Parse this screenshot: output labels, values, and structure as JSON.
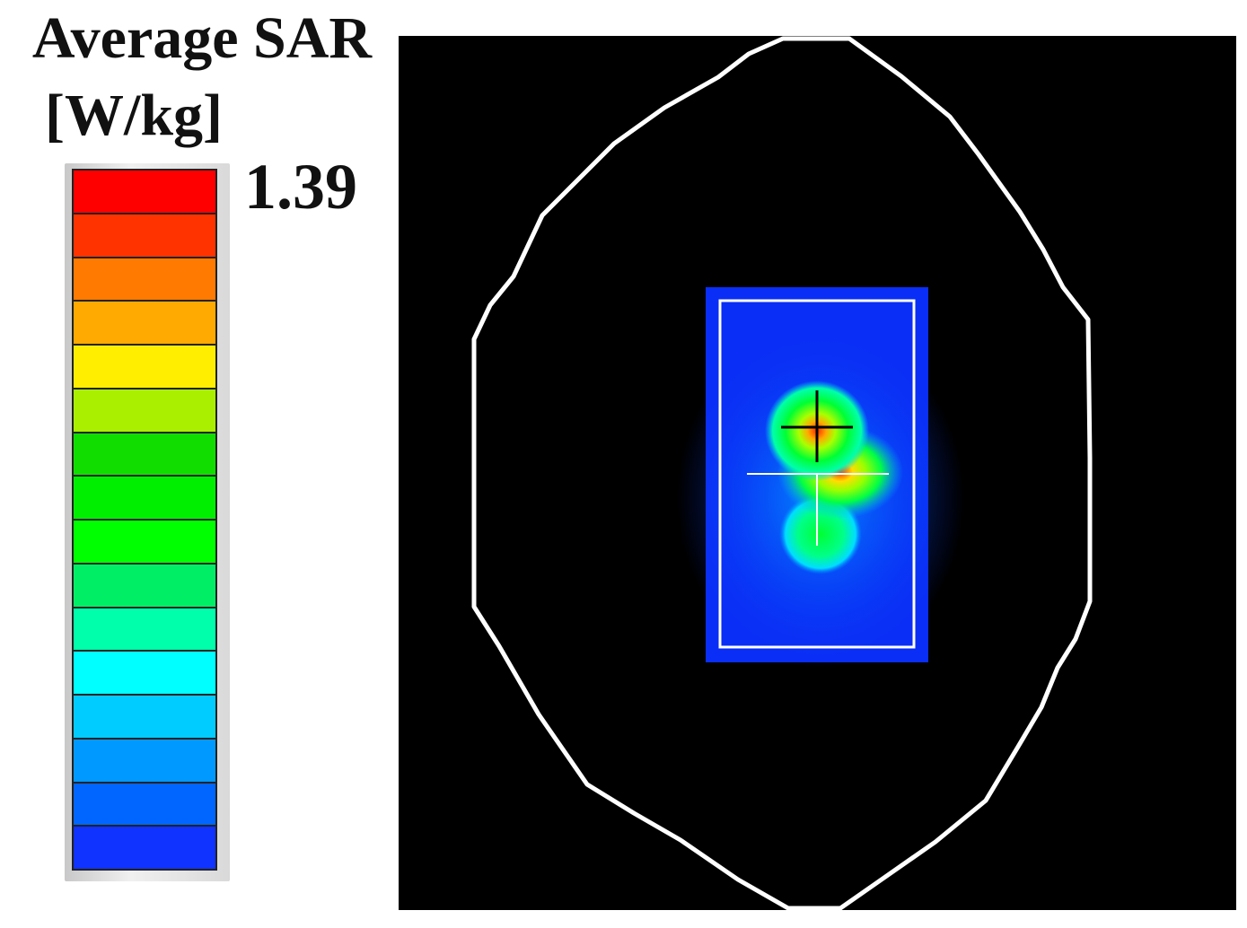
{
  "legend": {
    "title_line1": "Average SAR",
    "title_line2": "[W/kg]",
    "max_value": "1.39",
    "colors": [
      "#ff0000",
      "#ff3300",
      "#ff7a00",
      "#ffaa00",
      "#ffee00",
      "#aaee00",
      "#11dd00",
      "#00ee00",
      "#00ff00",
      "#00ee66",
      "#00ffaa",
      "#00ffff",
      "#00ccff",
      "#0099ff",
      "#0066ff",
      "#1133ff"
    ]
  },
  "plot": {
    "background": "#000000",
    "outline_color": "#ffffff",
    "board_color": "#0a2ef5"
  }
}
